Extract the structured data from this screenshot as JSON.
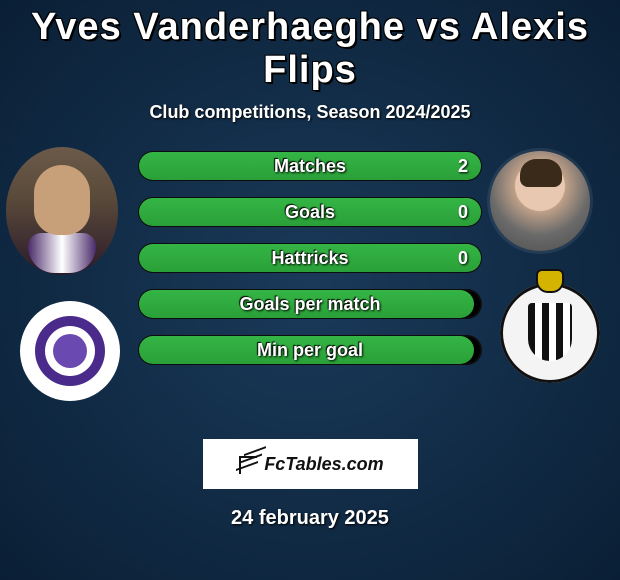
{
  "title": "Yves Vanderhaeghe vs Alexis Flips",
  "subtitle": "Club competitions, Season 2024/2025",
  "date": "24 february 2025",
  "badge_text": "FcTables.com",
  "colors": {
    "bar_fill": "#34b545",
    "bar_track": "#000000",
    "background": "#0f2a45"
  },
  "players": {
    "left": {
      "name": "Yves Vanderhaeghe",
      "club": "Anderlecht"
    },
    "right": {
      "name": "Alexis Flips",
      "club": "Charleroi"
    }
  },
  "stats": [
    {
      "label": "Matches",
      "value": "2",
      "fill_pct": 100
    },
    {
      "label": "Goals",
      "value": "0",
      "fill_pct": 100
    },
    {
      "label": "Hattricks",
      "value": "0",
      "fill_pct": 100
    },
    {
      "label": "Goals per match",
      "value": "",
      "fill_pct": 98
    },
    {
      "label": "Min per goal",
      "value": "",
      "fill_pct": 98
    }
  ]
}
